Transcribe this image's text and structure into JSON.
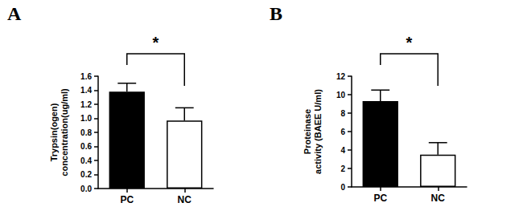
{
  "chart_data": [
    {
      "type": "bar",
      "title": "A",
      "categories": [
        "PC",
        "NC"
      ],
      "values": [
        1.38,
        0.97
      ],
      "errors": [
        0.12,
        0.18
      ],
      "colors": [
        "#000000",
        "#ffffff"
      ],
      "ylabel": "Trypsin(ogen)\nconcentration(ug/ml)",
      "ylim": [
        0,
        1.6
      ],
      "yticks": [
        {
          "value": 0,
          "label": "0.0"
        },
        0.2,
        0.4,
        0.6,
        0.8,
        {
          "value": 1,
          "label": "1.0"
        },
        1.2,
        1.4,
        1.6
      ],
      "annotations": [
        {
          "text": "*",
          "between": [
            "PC",
            "NC"
          ]
        }
      ]
    },
    {
      "type": "bar",
      "title": "B",
      "categories": [
        "PC",
        "NC"
      ],
      "values": [
        9.3,
        3.5
      ],
      "errors": [
        1.2,
        1.3
      ],
      "colors": [
        "#000000",
        "#ffffff"
      ],
      "ylabel": "Proteinase\nactivity (BAEE U/ml)",
      "ylim": [
        0,
        12
      ],
      "yticks": [
        0,
        2,
        4,
        6,
        8,
        10,
        12
      ],
      "annotations": [
        {
          "text": "*",
          "between": [
            "PC",
            "NC"
          ]
        }
      ]
    }
  ]
}
